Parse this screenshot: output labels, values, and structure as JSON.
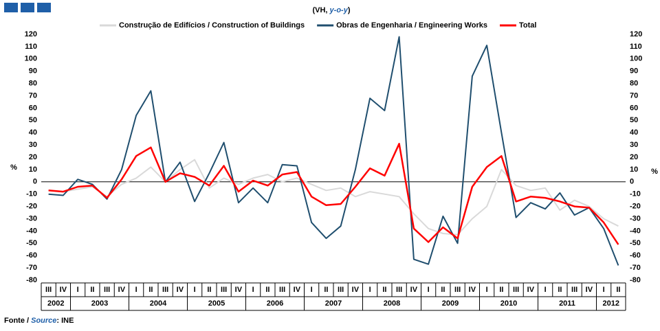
{
  "chart_data": {
    "type": "line",
    "subtitle": {
      "prefix": "(VH, ",
      "emphasis": "y-o-y",
      "suffix": ")"
    },
    "y_label": "%",
    "categories": [
      "III",
      "IV",
      "I",
      "II",
      "III",
      "IV",
      "I",
      "II",
      "III",
      "IV",
      "I",
      "II",
      "III",
      "IV",
      "I",
      "II",
      "III",
      "IV",
      "I",
      "II",
      "III",
      "IV",
      "I",
      "II",
      "III",
      "IV",
      "I",
      "II",
      "III",
      "IV",
      "I",
      "II",
      "III",
      "IV",
      "I",
      "II",
      "III",
      "IV",
      "I",
      "II"
    ],
    "year_labels": [
      "2002",
      "2003",
      "2004",
      "2005",
      "2006",
      "2007",
      "2008",
      "2009",
      "2010",
      "2011",
      "2012"
    ],
    "series": [
      {
        "name": "Construção de Edifícios / Construction of Buildings",
        "color": "#d9d9d9",
        "values": [
          -7,
          -8,
          -6,
          -4,
          -12,
          -2,
          3,
          12,
          0,
          10,
          18,
          -5,
          3,
          -2,
          3,
          6,
          0,
          3,
          -2,
          -7,
          -5,
          -12,
          -8,
          -10,
          -12,
          -26,
          -38,
          -42,
          -43,
          -30,
          -20,
          10,
          -3,
          -7,
          -5,
          -23,
          -15,
          -20,
          -30,
          -36
        ]
      },
      {
        "name": "Obras de Engenharia / Engineering Works",
        "color": "#1f4e6e",
        "values": [
          -10,
          -11,
          2,
          -2,
          -14,
          10,
          54,
          74,
          0,
          16,
          -16,
          7,
          32,
          -17,
          -5,
          -17,
          14,
          13,
          -33,
          -46,
          -36,
          10,
          68,
          58,
          118,
          -63,
          -67,
          -28,
          -50,
          86,
          111,
          40,
          -29,
          -17,
          -22,
          -9,
          -27,
          -21,
          -38,
          -68
        ]
      },
      {
        "name": "Total",
        "color": "#ff0000",
        "values": [
          -7,
          -8,
          -4,
          -3,
          -13,
          2,
          21,
          28,
          0,
          7,
          4,
          -3,
          13,
          -8,
          1,
          -3,
          6,
          8,
          -12,
          -19,
          -18,
          -4,
          11,
          5,
          31,
          -38,
          -49,
          -37,
          -46,
          -4,
          12,
          21,
          -16,
          -12,
          -13,
          -16,
          -20,
          -21,
          -33,
          -51
        ]
      }
    ],
    "ylim": [
      -80,
      120
    ],
    "yticks": [
      -80,
      -70,
      -60,
      -50,
      -40,
      -30,
      -20,
      -10,
      0,
      10,
      20,
      30,
      40,
      50,
      60,
      70,
      80,
      90,
      100,
      110,
      120
    ],
    "source": {
      "prefix": "Fonte / ",
      "emphasis": "Source",
      "suffix": ": INE"
    }
  }
}
